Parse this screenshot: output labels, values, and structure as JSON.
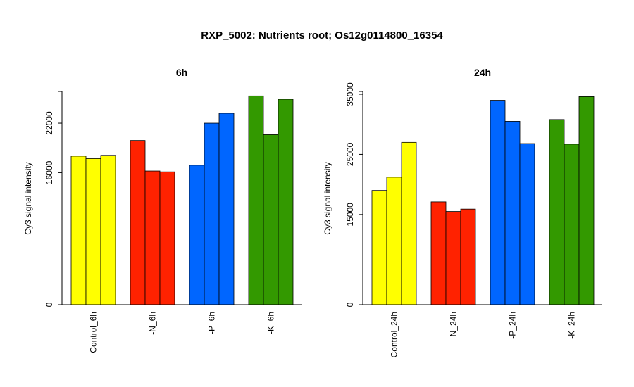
{
  "title": "RXP_5002: Nutrients root; Os12g0114800_16354",
  "chart_data": [
    {
      "type": "bar",
      "title": "6h",
      "ylabel": "Cy3 signal intensity",
      "categories": [
        "Control_6h",
        "-N_6h",
        "-P_6h",
        "-K_6h"
      ],
      "colors": [
        "#ffff00",
        "#ff2200",
        "#0066ff",
        "#339900"
      ],
      "values": [
        [
          18000,
          17700,
          18100
        ],
        [
          19900,
          16200,
          16100
        ],
        [
          16900,
          22000,
          23200
        ],
        [
          25300,
          20600,
          24900
        ]
      ],
      "yticks": [
        0,
        16000,
        22000
      ],
      "yaxis_max": 25500
    },
    {
      "type": "bar",
      "title": "24h",
      "ylabel": "Cy3 signal intensity",
      "categories": [
        "Control_24h",
        "-N_24h",
        "-P_24h",
        "-K_24h"
      ],
      "colors": [
        "#ffff00",
        "#ff2200",
        "#0066ff",
        "#339900"
      ],
      "values": [
        [
          19000,
          21200,
          27000
        ],
        [
          17100,
          15500,
          15900
        ],
        [
          34000,
          30500,
          26800
        ],
        [
          30800,
          26700,
          34600
        ]
      ],
      "yticks": [
        0,
        15000,
        25000,
        35000
      ],
      "yaxis_max": 35000
    }
  ]
}
